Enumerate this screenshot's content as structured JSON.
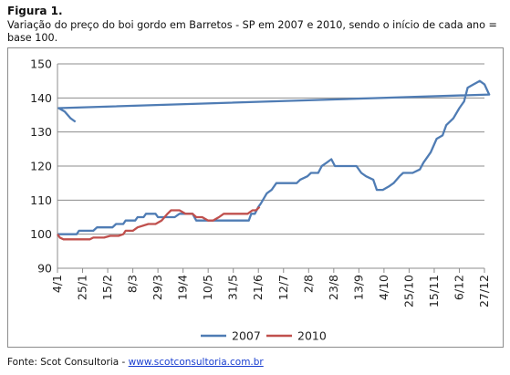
{
  "figure": {
    "label": "Figura 1.",
    "caption": "Variação do preço do boi gordo em Barretos - SP em 2007 e 2010, sendo o início de cada ano = base 100."
  },
  "source": {
    "prefix": "Fonte: Scot Consultoria - ",
    "link": "www.scotconsultoria.com.br"
  },
  "chart_data": {
    "type": "line",
    "title": "",
    "xlabel": "",
    "ylabel": "",
    "ylim": [
      90,
      150
    ],
    "yticks": [
      90,
      100,
      110,
      120,
      130,
      140,
      150
    ],
    "xlim": [
      "4/1",
      "27/12"
    ],
    "x_tick_labels": [
      "4/1",
      "25/1",
      "15/2",
      "8/3",
      "29/3",
      "19/4",
      "10/5",
      "31/5",
      "21/6",
      "12/7",
      "2/8",
      "23/8",
      "13/9",
      "4/10",
      "25/10",
      "15/11",
      "6/12",
      "27/12"
    ],
    "grid": "horizontal",
    "legend_position": "bottom",
    "series": [
      {
        "name": "2007",
        "color": "#4f7cb4",
        "points": [
          [
            "4/1",
            100
          ],
          [
            "20/1",
            100
          ],
          [
            "22/1",
            101
          ],
          [
            "3/2",
            101
          ],
          [
            "6/2",
            102
          ],
          [
            "19/2",
            102
          ],
          [
            "22/2",
            103
          ],
          [
            "28/2",
            103
          ],
          [
            "2/3",
            104
          ],
          [
            "10/3",
            104
          ],
          [
            "12/3",
            105
          ],
          [
            "17/3",
            105
          ],
          [
            "19/3",
            106
          ],
          [
            "27/3",
            106
          ],
          [
            "29/3",
            105
          ],
          [
            "12/4",
            105
          ],
          [
            "16/4",
            106
          ],
          [
            "27/4",
            106
          ],
          [
            "30/4",
            104
          ],
          [
            "20/5",
            104
          ],
          [
            "22/5",
            104
          ],
          [
            "13/6",
            104
          ],
          [
            "15/6",
            106
          ],
          [
            "18/6",
            106
          ],
          [
            "21/6",
            108
          ],
          [
            "23/6",
            109
          ],
          [
            "28/6",
            112
          ],
          [
            "2/7",
            113
          ],
          [
            "6/7",
            115
          ],
          [
            "10/7",
            115
          ],
          [
            "23/7",
            115
          ],
          [
            "26/7",
            116
          ],
          [
            "1/8",
            117
          ],
          [
            "4/8",
            118
          ],
          [
            "10/8",
            118
          ],
          [
            "13/8",
            120
          ],
          [
            "17/8",
            121
          ],
          [
            "21/8",
            122
          ],
          [
            "24/8",
            120
          ],
          [
            "31/8",
            120
          ],
          [
            "4/9",
            120
          ],
          [
            "11/9",
            120
          ],
          [
            "15/9",
            118
          ],
          [
            "19/9",
            117
          ],
          [
            "25/9",
            116
          ],
          [
            "28/9",
            113
          ],
          [
            "3/10",
            113
          ],
          [
            "8/10",
            114
          ],
          [
            "12/10",
            115
          ],
          [
            "17/10",
            117
          ],
          [
            "20/10",
            118
          ],
          [
            "28/10",
            118
          ],
          [
            "3/11",
            119
          ],
          [
            "6/11",
            121
          ],
          [
            "12/11",
            124
          ],
          [
            "17/11",
            128
          ],
          [
            "22/11",
            129
          ],
          [
            "25/11",
            132
          ],
          [
            "1/12",
            134
          ],
          [
            "6/12",
            137
          ],
          [
            "10/12",
            139
          ],
          [
            "13/12",
            143
          ],
          [
            "18/12",
            144
          ],
          [
            "23/12",
            145
          ],
          [
            "27/12",
            144
          ],
          [
            "31/12",
            141
          ],
          [
            "5/1",
            137
          ],
          [
            "10/1",
            136
          ],
          [
            "15/1",
            134
          ],
          [
            "19/1",
            133
          ]
        ]
      },
      {
        "name": "2010",
        "color": "#c0504d",
        "points": [
          [
            "4/1",
            100
          ],
          [
            "6/1",
            99
          ],
          [
            "9/1",
            98.5
          ],
          [
            "13/1",
            98.5
          ],
          [
            "22/1",
            98.5
          ],
          [
            "31/1",
            98.5
          ],
          [
            "3/2",
            99
          ],
          [
            "12/2",
            99
          ],
          [
            "17/2",
            99.5
          ],
          [
            "24/2",
            99.5
          ],
          [
            "28/2",
            100
          ],
          [
            "2/3",
            101
          ],
          [
            "8/3",
            101
          ],
          [
            "12/3",
            102
          ],
          [
            "21/3",
            103
          ],
          [
            "27/3",
            103
          ],
          [
            "1/4",
            104
          ],
          [
            "6/4",
            106
          ],
          [
            "9/4",
            107
          ],
          [
            "16/4",
            107
          ],
          [
            "21/4",
            106
          ],
          [
            "27/4",
            106
          ],
          [
            "30/4",
            105
          ],
          [
            "5/5",
            105
          ],
          [
            "10/5",
            104
          ],
          [
            "14/5",
            104
          ],
          [
            "19/5",
            105
          ],
          [
            "23/5",
            106
          ],
          [
            "28/5",
            106
          ],
          [
            "4/6",
            106
          ],
          [
            "9/6",
            106
          ],
          [
            "12/6",
            106
          ],
          [
            "16/6",
            107
          ],
          [
            "19/6",
            107
          ],
          [
            "22/6",
            108
          ]
        ]
      }
    ]
  }
}
